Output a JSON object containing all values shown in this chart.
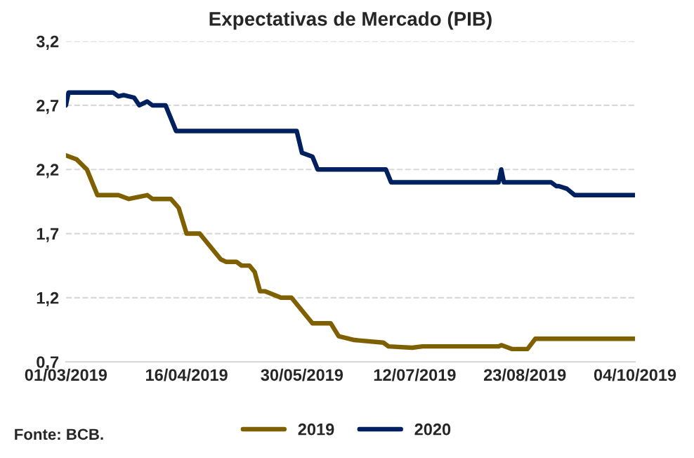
{
  "chart_data": {
    "type": "line",
    "title": "Expectativas de Mercado (PIB)",
    "annotations": [
      "Fonte: BCB."
    ],
    "xlim": [
      "2019-03-01",
      "2019-10-04"
    ],
    "xticks": [
      {
        "value": "2019-03-01",
        "label": "01/03/2019"
      },
      {
        "value": "2019-04-16",
        "label": "16/04/2019"
      },
      {
        "value": "2019-05-30",
        "label": "30/05/2019"
      },
      {
        "value": "2019-07-12",
        "label": "12/07/2019"
      },
      {
        "value": "2019-08-23",
        "label": "23/08/2019"
      },
      {
        "value": "2019-10-04",
        "label": "04/10/2019"
      }
    ],
    "ylim": [
      0.7,
      3.2
    ],
    "yticks": [
      {
        "value": 0.7,
        "label": "0,7"
      },
      {
        "value": 1.2,
        "label": "1,2"
      },
      {
        "value": 1.7,
        "label": "1,7"
      },
      {
        "value": 2.2,
        "label": "2,2"
      },
      {
        "value": 2.7,
        "label": "2,7"
      },
      {
        "value": 3.2,
        "label": "3,2"
      }
    ],
    "grid": "y",
    "legend": "bottom",
    "marker": "none",
    "line_style": "solid",
    "series": [
      {
        "name": "2019",
        "color": "#7f6000",
        "x": [
          "2019-03-01",
          "2019-03-05",
          "2019-03-09",
          "2019-03-13",
          "2019-03-21",
          "2019-03-25",
          "2019-04-01",
          "2019-04-03",
          "2019-04-10",
          "2019-04-13",
          "2019-04-16",
          "2019-04-21",
          "2019-04-25",
          "2019-04-29",
          "2019-05-01",
          "2019-05-05",
          "2019-05-07",
          "2019-05-10",
          "2019-05-12",
          "2019-05-14",
          "2019-05-16",
          "2019-05-22",
          "2019-05-26",
          "2019-05-30",
          "2019-06-03",
          "2019-06-10",
          "2019-06-13",
          "2019-06-19",
          "2019-06-30",
          "2019-07-02",
          "2019-07-11",
          "2019-07-15",
          "2019-08-13",
          "2019-08-14",
          "2019-08-18",
          "2019-08-24",
          "2019-08-27",
          "2019-10-04"
        ],
        "values": [
          2.31,
          2.28,
          2.2,
          2.0,
          2.0,
          1.97,
          2.0,
          1.97,
          1.97,
          1.9,
          1.7,
          1.7,
          1.6,
          1.5,
          1.48,
          1.48,
          1.45,
          1.45,
          1.4,
          1.25,
          1.25,
          1.2,
          1.2,
          1.1,
          1.0,
          1.0,
          0.9,
          0.87,
          0.85,
          0.82,
          0.81,
          0.82,
          0.82,
          0.83,
          0.8,
          0.8,
          0.88,
          0.88
        ]
      },
      {
        "name": "2020",
        "color": "#002060",
        "x": [
          "2019-03-01",
          "2019-03-02",
          "2019-03-19",
          "2019-03-21",
          "2019-03-23",
          "2019-03-27",
          "2019-03-29",
          "2019-04-01",
          "2019-04-03",
          "2019-04-08",
          "2019-04-12",
          "2019-05-28",
          "2019-05-30",
          "2019-06-03",
          "2019-06-05",
          "2019-07-01",
          "2019-07-03",
          "2019-08-13",
          "2019-08-14",
          "2019-08-15",
          "2019-09-02",
          "2019-09-04",
          "2019-09-05",
          "2019-09-08",
          "2019-09-11",
          "2019-10-04"
        ],
        "values": [
          2.7,
          2.8,
          2.8,
          2.77,
          2.78,
          2.76,
          2.7,
          2.73,
          2.7,
          2.7,
          2.5,
          2.5,
          2.33,
          2.3,
          2.2,
          2.2,
          2.1,
          2.1,
          2.2,
          2.1,
          2.1,
          2.07,
          2.07,
          2.05,
          2.0,
          2.0
        ]
      }
    ]
  }
}
